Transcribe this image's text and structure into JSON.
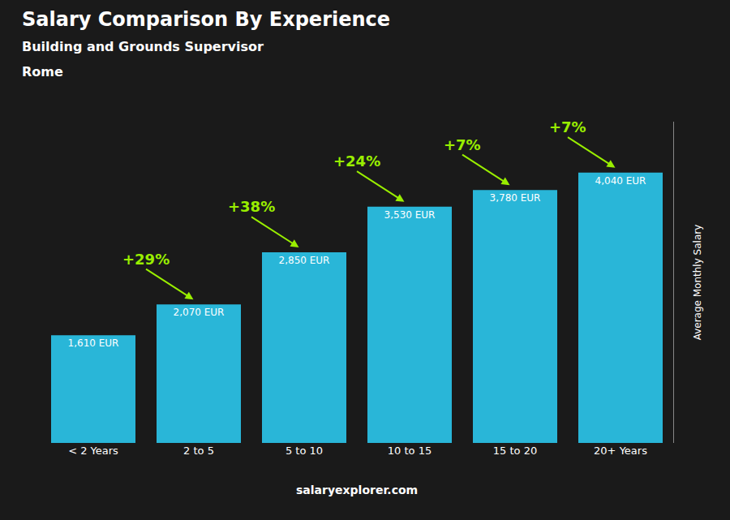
{
  "chart_data": {
    "type": "bar",
    "title": "Salary Comparison By Experience",
    "subtitle": [
      "Building and Grounds Supervisor",
      "Rome"
    ],
    "ylabel": "Average Monthly Salary",
    "categories": [
      "< 2 Years",
      "2 to 5",
      "5 to 10",
      "10 to 15",
      "15 to 20",
      "20+ Years"
    ],
    "values": [
      1610,
      2070,
      2850,
      3530,
      3780,
      4040
    ],
    "value_labels": [
      "1,610 EUR",
      "2,070 EUR",
      "2,850 EUR",
      "3,530 EUR",
      "3,780 EUR",
      "4,040 EUR"
    ],
    "data_labels": true,
    "color": "#29b6d8",
    "ylim": [
      0,
      4800
    ],
    "tick_labels": "x",
    "grid": false,
    "annotations": [
      {
        "category": "2 to 5",
        "text": "+29%",
        "color": "#99ee00"
      },
      {
        "category": "5 to 10",
        "text": "+38%",
        "color": "#99ee00"
      },
      {
        "category": "10 to 15",
        "text": "+24%",
        "color": "#99ee00"
      },
      {
        "category": "15 to 20",
        "text": "+7%",
        "color": "#99ee00"
      },
      {
        "category": "20+ Years",
        "text": "+7%",
        "color": "#99ee00"
      },
      {
        "text": "salaryexplorer.com"
      }
    ]
  }
}
